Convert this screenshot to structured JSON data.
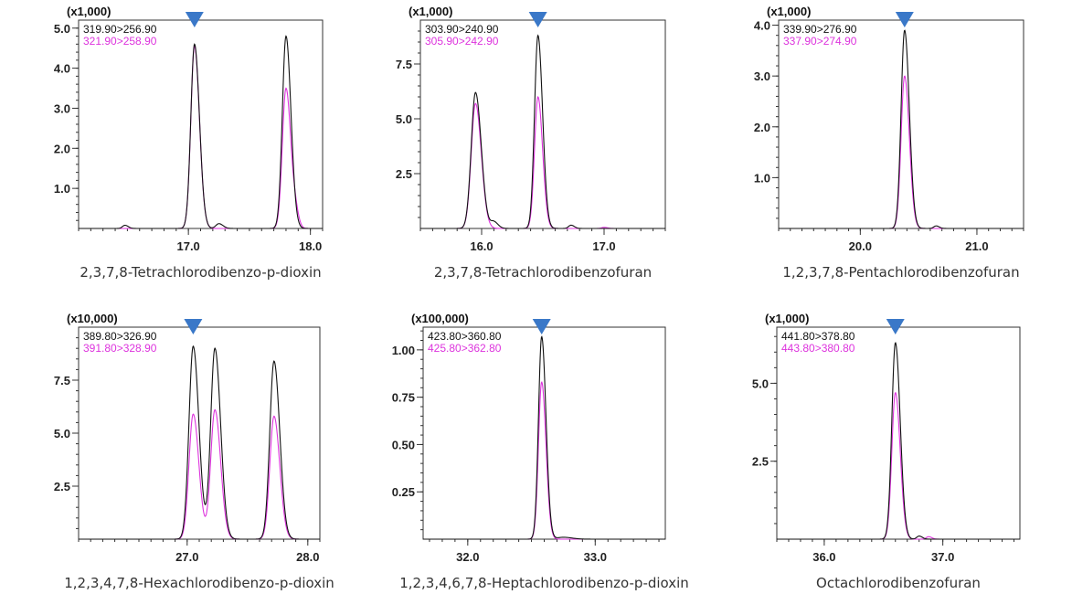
{
  "colors": {
    "series_a": "#111111",
    "series_b": "#dd33dd",
    "marker": "#3a78c8",
    "axis": "#333333",
    "caption": "#333333"
  },
  "marker_icon": "down-triangle-icon",
  "chart_data": [
    {
      "type": "line",
      "title": "2,3,7,8-Tetrachlorodibenzo-p-dioxin",
      "scale_label": "(x1,000)",
      "xlim": [
        16.1,
        18.1
      ],
      "ylim": [
        0,
        5.2
      ],
      "x_ticks": [
        17.0,
        18.0
      ],
      "x_tick_labels": [
        "17.0",
        "18.0"
      ],
      "y_ticks": [
        1.0,
        2.0,
        3.0,
        4.0,
        5.0
      ],
      "y_tick_labels": [
        "1.0",
        "2.0",
        "3.0",
        "4.0",
        "5.0"
      ],
      "marker_x": 17.05,
      "series": [
        {
          "name": "319.90>256.90",
          "peaks": [
            [
              16.48,
              0.08,
              0.02
            ],
            [
              17.05,
              4.6,
              0.03
            ],
            [
              17.25,
              0.12,
              0.025
            ],
            [
              17.8,
              4.8,
              0.03
            ]
          ]
        },
        {
          "name": "321.90>258.90",
          "peaks": [
            [
              17.05,
              4.55,
              0.03
            ],
            [
              17.8,
              3.5,
              0.03
            ],
            [
              17.88,
              0.3,
              0.02
            ]
          ]
        }
      ]
    },
    {
      "type": "line",
      "title": "2,3,7,8-Tetrachlorodibenzofuran",
      "scale_label": "(x1,000)",
      "xlim": [
        15.5,
        17.5
      ],
      "ylim": [
        0,
        9.5
      ],
      "x_ticks": [
        16.0,
        17.0
      ],
      "x_tick_labels": [
        "16.0",
        "17.0"
      ],
      "y_ticks": [
        2.5,
        5.0,
        7.5
      ],
      "y_tick_labels": [
        "2.5",
        "5.0",
        "7.5"
      ],
      "marker_x": 16.46,
      "series": [
        {
          "name": "303.90>240.90",
          "peaks": [
            [
              15.95,
              6.2,
              0.035
            ],
            [
              16.1,
              0.3,
              0.025
            ],
            [
              16.46,
              8.8,
              0.028
            ],
            [
              16.73,
              0.15,
              0.02
            ]
          ]
        },
        {
          "name": "305.90>242.90",
          "peaks": [
            [
              15.95,
              5.7,
              0.035
            ],
            [
              16.46,
              6.0,
              0.028
            ],
            [
              17.0,
              0.05,
              0.02
            ]
          ]
        }
      ]
    },
    {
      "type": "line",
      "title": "1,2,3,7,8-Pentachlorodibenzofuran",
      "scale_label": "(x1,000)",
      "xlim": [
        19.3,
        21.4
      ],
      "ylim": [
        0,
        4.1
      ],
      "x_ticks": [
        20.0,
        21.0
      ],
      "x_tick_labels": [
        "20.0",
        "21.0"
      ],
      "y_ticks": [
        1.0,
        2.0,
        3.0,
        4.0
      ],
      "y_tick_labels": [
        "1.0",
        "2.0",
        "3.0",
        "4.0"
      ],
      "marker_x": 20.38,
      "series": [
        {
          "name": "339.90>276.90",
          "peaks": [
            [
              20.38,
              3.9,
              0.03
            ],
            [
              20.65,
              0.05,
              0.02
            ]
          ]
        },
        {
          "name": "337.90>274.90",
          "peaks": [
            [
              20.38,
              3.0,
              0.03
            ]
          ]
        }
      ]
    },
    {
      "type": "line",
      "title": "1,2,3,4,7,8-Hexachlorodibenzo-p-dioxin",
      "scale_label": "(x10,000)",
      "xlim": [
        26.1,
        28.1
      ],
      "ylim": [
        0,
        10.0
      ],
      "x_ticks": [
        27.0,
        28.0
      ],
      "x_tick_labels": [
        "27.0",
        "28.0"
      ],
      "y_ticks": [
        2.5,
        5.0,
        7.5
      ],
      "y_tick_labels": [
        "2.5",
        "5.0",
        "7.5"
      ],
      "marker_x": 27.05,
      "series": [
        {
          "name": "389.80>326.90",
          "peaks": [
            [
              27.05,
              9.1,
              0.035
            ],
            [
              27.23,
              9.0,
              0.035
            ],
            [
              27.72,
              8.4,
              0.035
            ]
          ]
        },
        {
          "name": "391.80>328.90",
          "peaks": [
            [
              27.05,
              5.9,
              0.035
            ],
            [
              27.23,
              6.1,
              0.035
            ],
            [
              27.72,
              5.8,
              0.035
            ]
          ]
        }
      ]
    },
    {
      "type": "line",
      "title": "1,2,3,4,6,7,8-Heptachlorodibenzo-p-dioxin",
      "scale_label": "(x100,000)",
      "xlim": [
        31.65,
        33.55
      ],
      "ylim": [
        0,
        1.12
      ],
      "x_ticks": [
        32.0,
        33.0
      ],
      "x_tick_labels": [
        "32.0",
        "33.0"
      ],
      "y_ticks": [
        0.25,
        0.5,
        0.75,
        1.0
      ],
      "y_tick_labels": [
        "0.25",
        "0.50",
        "0.75",
        "1.00"
      ],
      "marker_x": 32.58,
      "series": [
        {
          "name": "423.80>360.80",
          "peaks": [
            [
              32.58,
              1.07,
              0.025
            ],
            [
              32.75,
              0.01,
              0.05
            ]
          ]
        },
        {
          "name": "425.80>362.80",
          "peaks": [
            [
              32.58,
              0.83,
              0.025
            ]
          ]
        }
      ]
    },
    {
      "type": "line",
      "title": "Octachlorodibenzofuran",
      "scale_label": "(x1,000)",
      "xlim": [
        35.6,
        37.65
      ],
      "ylim": [
        0,
        6.8
      ],
      "x_ticks": [
        36.0,
        37.0
      ],
      "x_tick_labels": [
        "36.0",
        "37.0"
      ],
      "y_ticks": [
        2.5,
        5.0
      ],
      "y_tick_labels": [
        "2.5",
        "5.0"
      ],
      "marker_x": 36.6,
      "series": [
        {
          "name": "441.80>378.80",
          "peaks": [
            [
              36.6,
              6.3,
              0.03
            ],
            [
              36.8,
              0.1,
              0.02
            ]
          ]
        },
        {
          "name": "443.80>380.80",
          "peaks": [
            [
              36.6,
              4.7,
              0.03
            ],
            [
              36.88,
              0.08,
              0.02
            ]
          ]
        }
      ]
    }
  ]
}
